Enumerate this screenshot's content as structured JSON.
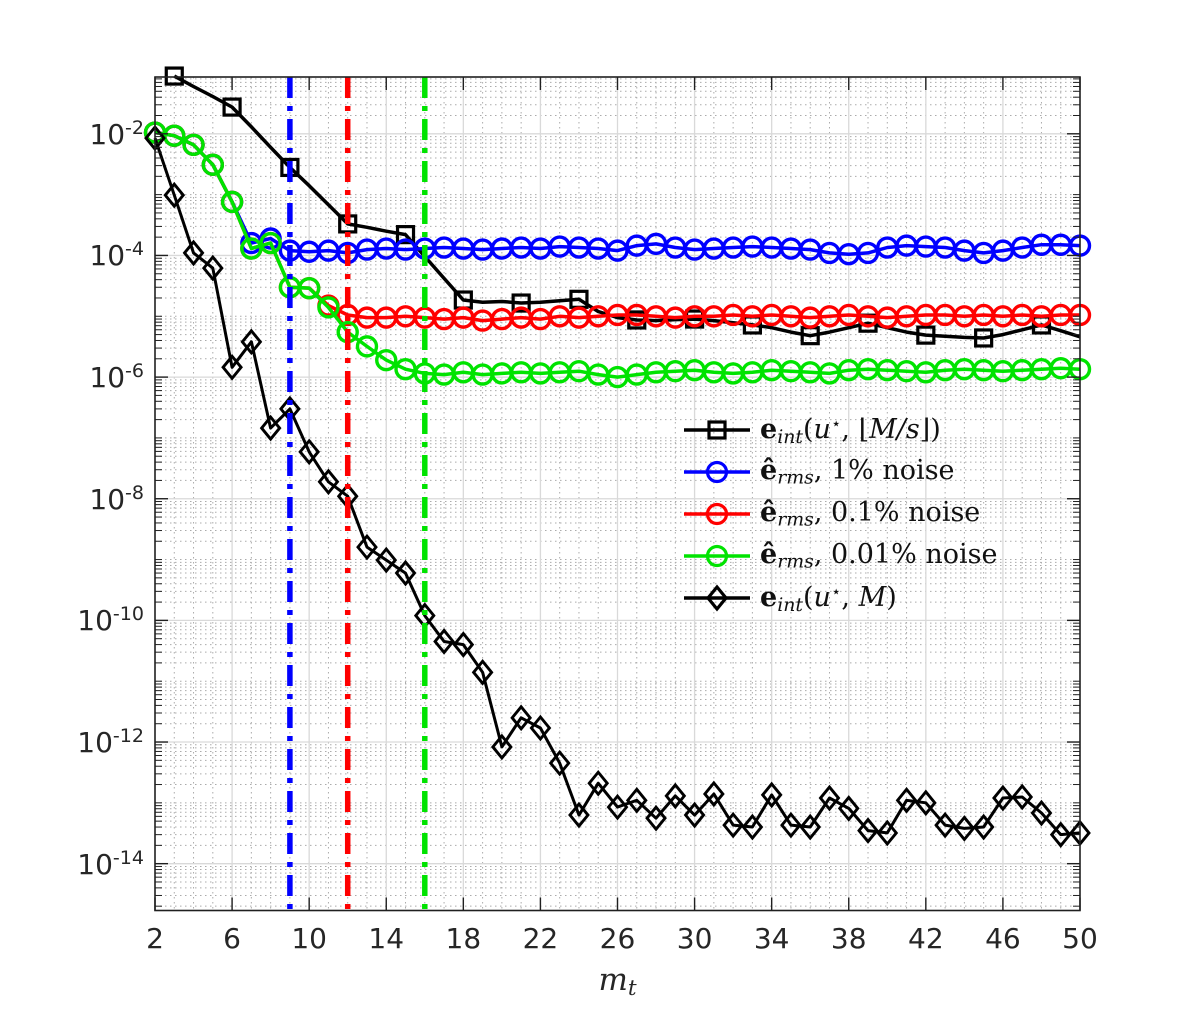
{
  "figure": {
    "background": "#ffffff",
    "spine_color": "#202020",
    "grid_major_color": "#d9d9d9",
    "grid_minor_color": "#ababab",
    "x_axis_label_plain": "m_t",
    "x_axis_label_segments": [
      {
        "t": "m",
        "s": "i"
      },
      {
        "t": "t",
        "s": "sub"
      }
    ],
    "x_ticks": [
      2,
      6,
      10,
      14,
      18,
      22,
      26,
      30,
      34,
      38,
      42,
      46,
      50
    ],
    "y_tick_exponents": [
      -2,
      -4,
      -6,
      -8,
      -10,
      -12,
      -14
    ]
  },
  "chart_data": {
    "type": "line",
    "title": "",
    "xlabel": "m_t",
    "ylabel": "",
    "x_scale": "linear",
    "y_scale": "log",
    "xlim": [
      2,
      50
    ],
    "ylim_exponents": [
      -14.77,
      -1.066
    ],
    "grid": "major solid at labeled ticks, dotted log minor grid",
    "legend_position": "center-right, no box",
    "vertical_lines": [
      {
        "x": 9,
        "color": "#0000ff",
        "style": "dash-dot"
      },
      {
        "x": 12,
        "color": "#ff0000",
        "style": "dash-dot"
      },
      {
        "x": 16,
        "color": "#00e300",
        "style": "dash-dot"
      }
    ],
    "series": [
      {
        "name": "e_int(u*, floor(M/s))",
        "plain_label": "e_int(u⋆, ⌊M/s⌋)",
        "color": "#000000",
        "marker": "square",
        "marker_every": 3,
        "x": [
          3,
          4,
          5,
          6,
          7,
          8,
          9,
          10,
          11,
          12,
          13,
          14,
          15,
          16,
          17,
          18,
          19,
          20,
          21,
          22,
          23,
          24,
          25,
          26,
          27,
          28,
          29,
          30,
          31,
          32,
          33,
          34,
          35,
          36,
          37,
          38,
          39,
          40,
          41,
          42,
          43,
          44,
          45,
          46,
          47,
          48,
          49,
          50
        ],
        "y": [
          0.089,
          0.06,
          0.041,
          0.0275,
          0.013,
          0.006,
          0.0028,
          0.0014,
          0.00068,
          0.00033,
          0.00029,
          0.00025,
          0.00022,
          9.6e-05,
          4.2e-05,
          1.85e-05,
          1.7e-05,
          1.75e-05,
          1.65e-05,
          1.7e-05,
          1.8e-05,
          1.9e-05,
          1.2e-05,
          9.5e-06,
          8.7e-06,
          8.5e-06,
          8.8e-06,
          9e-06,
          8.5e-06,
          7.8e-06,
          7.2e-06,
          6.5e-06,
          5.5e-06,
          4.8e-06,
          5.5e-06,
          6.5e-06,
          7.7e-06,
          6.5e-06,
          5.5e-06,
          4.9e-06,
          4.7e-06,
          4.5e-06,
          4.4e-06,
          5e-06,
          6e-06,
          7.2e-06,
          5.8e-06,
          4.6e-06
        ]
      },
      {
        "name": "ê_rms, 1% noise",
        "plain_label": "ê_rms, 1% noise",
        "color": "#0000ff",
        "marker": "circle",
        "marker_every": 1,
        "x": [
          2,
          3,
          4,
          5,
          6,
          7,
          8,
          9,
          10,
          11,
          12,
          13,
          14,
          15,
          16,
          17,
          18,
          19,
          20,
          21,
          22,
          23,
          24,
          25,
          26,
          27,
          28,
          29,
          30,
          31,
          32,
          33,
          34,
          35,
          36,
          37,
          38,
          39,
          40,
          41,
          42,
          43,
          44,
          45,
          46,
          47,
          48,
          49,
          50
        ],
        "y": [
          0.0105,
          0.0093,
          0.0066,
          0.0031,
          0.00076,
          0.00016,
          0.00019,
          0.00012,
          0.000115,
          0.00012,
          0.00011,
          0.000125,
          0.00013,
          0.000125,
          0.00013,
          0.000135,
          0.00013,
          0.000125,
          0.00013,
          0.000135,
          0.00013,
          0.00014,
          0.000135,
          0.00013,
          0.00012,
          0.000145,
          0.000155,
          0.000135,
          0.000125,
          0.00013,
          0.000135,
          0.00014,
          0.000135,
          0.00013,
          0.000125,
          0.00011,
          0.000105,
          0.00011,
          0.000135,
          0.000145,
          0.00014,
          0.000135,
          0.00012,
          0.00011,
          0.00012,
          0.000135,
          0.00015,
          0.00015,
          0.000145
        ]
      },
      {
        "name": "ê_rms, 0.1% noise",
        "plain_label": "ê_rms, 0.1% noise",
        "color": "#ff0000",
        "marker": "circle",
        "marker_every": 1,
        "x": [
          2,
          3,
          4,
          5,
          6,
          7,
          8,
          9,
          10,
          11,
          12,
          13,
          14,
          15,
          16,
          17,
          18,
          19,
          20,
          21,
          22,
          23,
          24,
          25,
          26,
          27,
          28,
          29,
          30,
          31,
          32,
          33,
          34,
          35,
          36,
          37,
          38,
          39,
          40,
          41,
          42,
          43,
          44,
          45,
          46,
          47,
          48,
          49,
          50
        ],
        "y": [
          0.0105,
          0.0093,
          0.0066,
          0.0031,
          0.00076,
          0.00013,
          0.00016,
          3e-05,
          2.9e-05,
          1.5e-05,
          1.05e-05,
          9.5e-06,
          9.5e-06,
          1e-05,
          9.5e-06,
          9e-06,
          9.5e-06,
          8.5e-06,
          9e-06,
          9.5e-06,
          9e-06,
          1e-05,
          9.5e-06,
          1e-05,
          1.05e-05,
          1.05e-05,
          1e-05,
          9.5e-06,
          1e-05,
          1e-05,
          1.05e-05,
          1e-05,
          1.05e-05,
          1e-05,
          9.5e-06,
          1e-05,
          1.05e-05,
          1e-05,
          9.5e-06,
          1e-05,
          1.05e-05,
          1.05e-05,
          1e-05,
          1.05e-05,
          1e-05,
          1.05e-05,
          1e-05,
          1.05e-05,
          1.05e-05
        ]
      },
      {
        "name": "ê_rms, 0.01% noise",
        "plain_label": "ê_rms, 0.01% noise",
        "color": "#00e300",
        "marker": "circle",
        "marker_every": 1,
        "x": [
          2,
          3,
          4,
          5,
          6,
          7,
          8,
          9,
          10,
          11,
          12,
          13,
          14,
          15,
          16,
          17,
          18,
          19,
          20,
          21,
          22,
          23,
          24,
          25,
          26,
          27,
          28,
          29,
          30,
          31,
          32,
          33,
          34,
          35,
          36,
          37,
          38,
          39,
          40,
          41,
          42,
          43,
          44,
          45,
          46,
          47,
          48,
          49,
          50
        ],
        "y": [
          0.0105,
          0.0093,
          0.0066,
          0.0031,
          0.00076,
          0.00013,
          0.00016,
          3e-05,
          2.9e-05,
          1.4e-05,
          5.5e-06,
          3.2e-06,
          1.9e-06,
          1.35e-06,
          1.15e-06,
          1.1e-06,
          1.2e-06,
          1.1e-06,
          1.15e-06,
          1.2e-06,
          1.15e-06,
          1.2e-06,
          1.25e-06,
          1.1e-06,
          1e-06,
          1.1e-06,
          1.2e-06,
          1.25e-06,
          1.3e-06,
          1.2e-06,
          1.15e-06,
          1.2e-06,
          1.3e-06,
          1.25e-06,
          1.2e-06,
          1.15e-06,
          1.3e-06,
          1.35e-06,
          1.3e-06,
          1.25e-06,
          1.2e-06,
          1.3e-06,
          1.35e-06,
          1.3e-06,
          1.25e-06,
          1.3e-06,
          1.35e-06,
          1.4e-06,
          1.35e-06
        ]
      },
      {
        "name": "e_int(u*, M)",
        "plain_label": "e_int(u⋆, M)",
        "color": "#000000",
        "marker": "diamond",
        "marker_every": 1,
        "x": [
          2,
          3,
          4,
          5,
          6,
          7,
          8,
          9,
          10,
          11,
          12,
          13,
          14,
          15,
          16,
          17,
          18,
          19,
          20,
          21,
          22,
          23,
          24,
          25,
          26,
          27,
          28,
          29,
          30,
          31,
          32,
          33,
          34,
          35,
          36,
          37,
          38,
          39,
          40,
          41,
          42,
          43,
          44,
          45,
          46,
          47,
          48,
          49,
          50
        ],
        "y": [
          0.0085,
          0.00098,
          0.00011,
          6.2e-05,
          1.45e-06,
          3.8e-06,
          1.45e-07,
          3e-07,
          5.9e-08,
          1.9e-08,
          1.1e-08,
          1.6e-09,
          9.8e-10,
          6e-10,
          1.2e-10,
          4.5e-11,
          4e-11,
          1.4e-11,
          8.3e-13,
          2.5e-12,
          1.7e-12,
          4.5e-13,
          6.3e-14,
          2.1e-13,
          8.5e-14,
          1.1e-13,
          5.6e-14,
          1.3e-13,
          6.3e-14,
          1.4e-13,
          4.3e-14,
          4e-14,
          1.35e-13,
          4.3e-14,
          4e-14,
          1.2e-13,
          8.1e-14,
          3.5e-14,
          3.2e-14,
          1.1e-13,
          1e-13,
          4.3e-14,
          3.8e-14,
          4e-14,
          1.2e-13,
          1.25e-13,
          6.8e-14,
          3e-14,
          3.2e-14
        ]
      }
    ],
    "legend": {
      "items": [
        {
          "marker": "square",
          "color": "#000000",
          "plain": "e_int(u⋆, ⌊M/s⌋)",
          "segments": [
            {
              "t": "e",
              "s": "b"
            },
            {
              "t": "int",
              "s": "sub"
            },
            {
              "t": "(",
              "s": "r"
            },
            {
              "t": "u",
              "s": "i"
            },
            {
              "t": "⋆",
              "s": "sup"
            },
            {
              "t": ", ⌊",
              "s": "r"
            },
            {
              "t": "M/s",
              "s": "i"
            },
            {
              "t": "⌋)",
              "s": "r"
            }
          ]
        },
        {
          "marker": "circle",
          "color": "#0000ff",
          "plain": "ê_rms, 1% noise",
          "segments": [
            {
              "t": "ê",
              "s": "b"
            },
            {
              "t": "rms",
              "s": "sub"
            },
            {
              "t": ", 1% noise",
              "s": "r"
            }
          ]
        },
        {
          "marker": "circle",
          "color": "#ff0000",
          "plain": "ê_rms, 0.1% noise",
          "segments": [
            {
              "t": "ê",
              "s": "b"
            },
            {
              "t": "rms",
              "s": "sub"
            },
            {
              "t": ", 0.1% noise",
              "s": "r"
            }
          ]
        },
        {
          "marker": "circle",
          "color": "#00e300",
          "plain": "ê_rms, 0.01% noise",
          "segments": [
            {
              "t": "ê",
              "s": "b"
            },
            {
              "t": "rms",
              "s": "sub"
            },
            {
              "t": ", 0.01% noise",
              "s": "r"
            }
          ]
        },
        {
          "marker": "diamond",
          "color": "#000000",
          "plain": "e_int(u⋆, M)",
          "segments": [
            {
              "t": "e",
              "s": "b"
            },
            {
              "t": "int",
              "s": "sub"
            },
            {
              "t": "(",
              "s": "r"
            },
            {
              "t": "u",
              "s": "i"
            },
            {
              "t": "⋆",
              "s": "sup"
            },
            {
              "t": ", ",
              "s": "r"
            },
            {
              "t": "M",
              "s": "i"
            },
            {
              "t": ")",
              "s": "r"
            }
          ]
        }
      ]
    }
  }
}
